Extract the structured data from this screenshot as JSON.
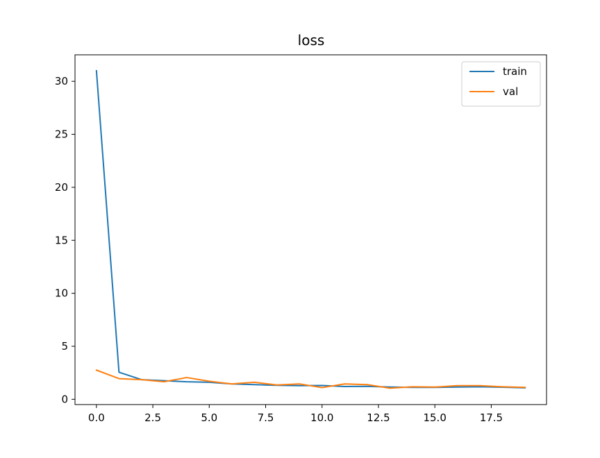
{
  "chart_data": {
    "type": "line",
    "title": "loss",
    "xlabel": "",
    "ylabel": "",
    "xlim": [
      -0.95,
      19.95
    ],
    "ylim": [
      -0.5,
      32.5
    ],
    "xticks": [
      0.0,
      2.5,
      5.0,
      7.5,
      10.0,
      12.5,
      15.0,
      17.5
    ],
    "xtick_labels": [
      "0.0",
      "2.5",
      "5.0",
      "7.5",
      "10.0",
      "12.5",
      "15.0",
      "17.5"
    ],
    "yticks": [
      0,
      5,
      10,
      15,
      20,
      25,
      30
    ],
    "ytick_labels": [
      "0",
      "5",
      "10",
      "15",
      "20",
      "25",
      "30"
    ],
    "grid": false,
    "legend_position": "top-right",
    "x": [
      0,
      1,
      2,
      3,
      4,
      5,
      6,
      7,
      8,
      9,
      10,
      11,
      12,
      13,
      14,
      15,
      16,
      17,
      18,
      19
    ],
    "series": [
      {
        "name": "train",
        "color": "#1f77b4",
        "values": [
          31.0,
          2.55,
          1.85,
          1.75,
          1.65,
          1.6,
          1.45,
          1.38,
          1.32,
          1.28,
          1.3,
          1.2,
          1.22,
          1.15,
          1.12,
          1.12,
          1.15,
          1.18,
          1.14,
          1.08
        ]
      },
      {
        "name": "val",
        "color": "#ff7f0e",
        "values": [
          2.75,
          1.95,
          1.85,
          1.65,
          2.05,
          1.7,
          1.45,
          1.6,
          1.35,
          1.45,
          1.1,
          1.45,
          1.38,
          1.05,
          1.18,
          1.15,
          1.28,
          1.28,
          1.18,
          1.12
        ]
      }
    ]
  }
}
